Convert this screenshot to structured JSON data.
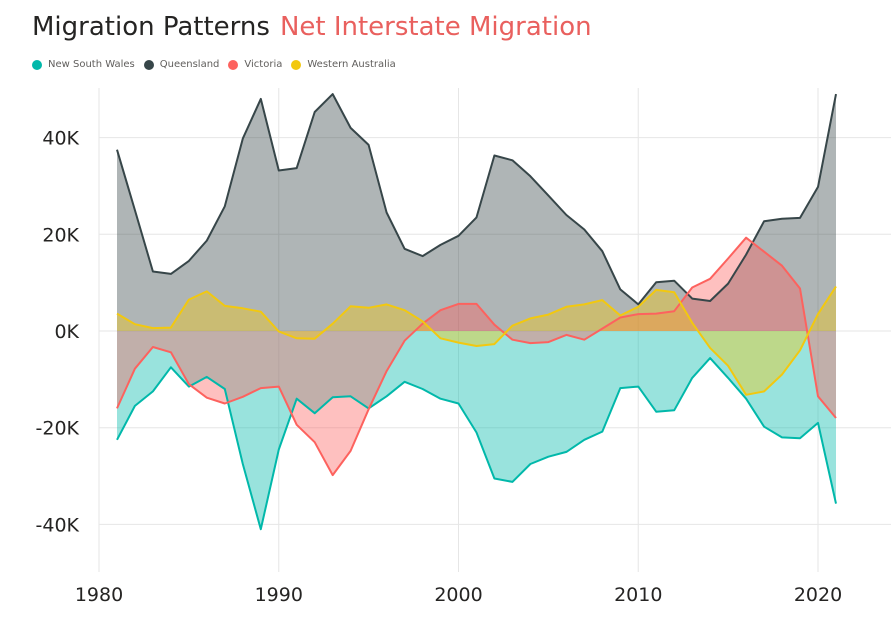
{
  "header": {
    "title": "Migration Patterns",
    "subtitle": "Net Interstate Migration"
  },
  "chart_data": {
    "type": "area",
    "title": "Migration Patterns",
    "subtitle": "Net Interstate Migration",
    "xlabel": "",
    "ylabel": "",
    "x": [
      1981,
      1982,
      1983,
      1984,
      1985,
      1986,
      1987,
      1988,
      1989,
      1990,
      1991,
      1992,
      1993,
      1994,
      1995,
      1996,
      1997,
      1998,
      1999,
      2000,
      2001,
      2002,
      2003,
      2004,
      2005,
      2006,
      2007,
      2008,
      2009,
      2010,
      2011,
      2012,
      2013,
      2014,
      2015,
      2016,
      2017,
      2018,
      2019,
      2020,
      2021
    ],
    "xlim": [
      1980,
      2023
    ],
    "ylim": [
      -50000,
      50000
    ],
    "x_ticks": [
      1980,
      1990,
      2000,
      2010,
      2020
    ],
    "x_tick_labels": [
      "1980",
      "1990",
      "2000",
      "2010",
      "2020"
    ],
    "y_ticks": [
      -40000,
      -20000,
      0,
      20000,
      40000
    ],
    "y_tick_labels": [
      "-40K",
      "-20K",
      "0K",
      "20K",
      "40K"
    ],
    "grid": true,
    "legend_position": "top-left",
    "series": [
      {
        "name": "New South Wales",
        "color": "#01b8aa",
        "values": [
          -22500,
          -15500,
          -12500,
          -7500,
          -11500,
          -9500,
          -12000,
          -27500,
          -41000,
          -24500,
          -14000,
          -17000,
          -13700,
          -13500,
          -16000,
          -13500,
          -10500,
          -12000,
          -14000,
          -15000,
          -21000,
          -30500,
          -31200,
          -27500,
          -26000,
          -25000,
          -22500,
          -20800,
          -11800,
          -11500,
          -16700,
          -16400,
          -9700,
          -5600,
          -9700,
          -14000,
          -19800,
          -22000,
          -22200,
          -19000,
          -35700
        ]
      },
      {
        "name": "Queensland",
        "color": "#374649",
        "values": [
          37500,
          25000,
          12300,
          11800,
          14500,
          18700,
          25800,
          39800,
          48000,
          33200,
          33700,
          45300,
          49000,
          42000,
          38500,
          24500,
          17000,
          15500,
          17800,
          19700,
          23500,
          36300,
          35300,
          32000,
          28000,
          24000,
          21000,
          16500,
          8600,
          5500,
          10100,
          10400,
          6700,
          6200,
          9800,
          15800,
          22700,
          23200,
          23400,
          29800,
          49000
        ]
      },
      {
        "name": "Victoria",
        "color": "#fd625e",
        "values": [
          -16000,
          -7800,
          -3300,
          -4400,
          -11000,
          -13800,
          -15000,
          -13600,
          -11800,
          -11500,
          -19400,
          -23000,
          -29800,
          -24800,
          -16200,
          -8300,
          -2000,
          1500,
          4300,
          5600,
          5600,
          1300,
          -1800,
          -2500,
          -2300,
          -800,
          -1800,
          500,
          2800,
          3500,
          3600,
          4100,
          9000,
          10800,
          15000,
          19300,
          16400,
          13500,
          8800,
          -13500,
          -18000
        ]
      },
      {
        "name": "Western Australia",
        "color": "#f2c80f",
        "values": [
          3600,
          1400,
          600,
          700,
          6500,
          8200,
          5200,
          4700,
          4000,
          -100,
          -1500,
          -1600,
          1500,
          5100,
          4800,
          5500,
          4300,
          2000,
          -1500,
          -2400,
          -3100,
          -2700,
          1100,
          2600,
          3400,
          5000,
          5500,
          6400,
          3200,
          5000,
          8500,
          8000,
          1700,
          -3500,
          -7200,
          -13200,
          -12500,
          -9000,
          -4000,
          3500,
          9200
        ]
      }
    ]
  }
}
